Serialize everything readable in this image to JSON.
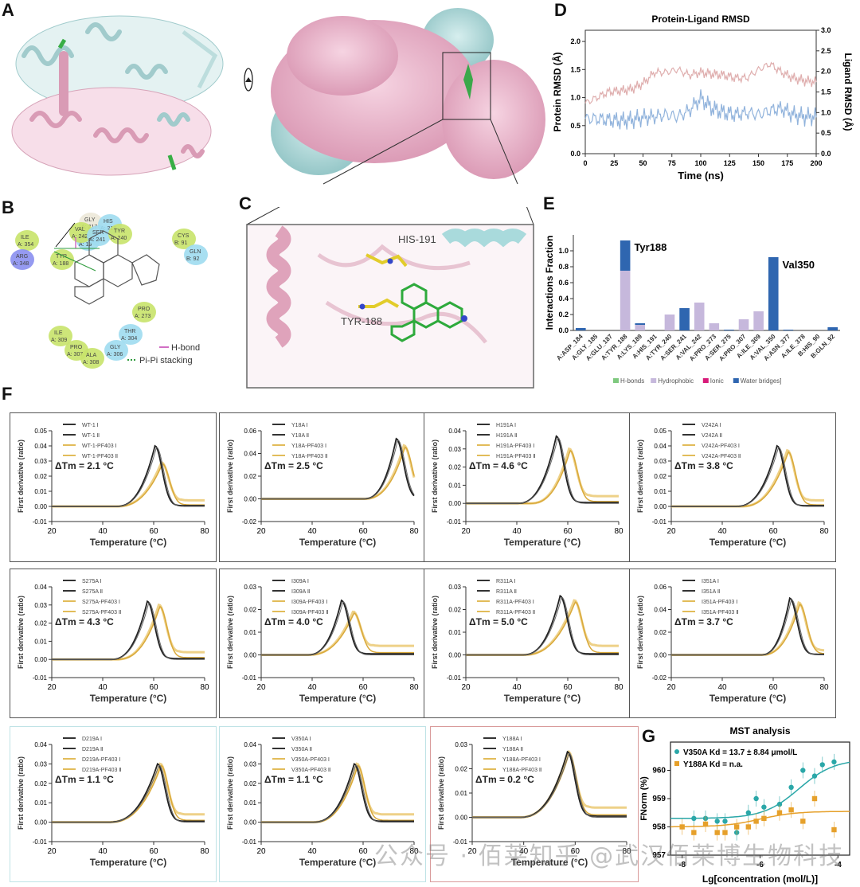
{
  "panels": {
    "A": {
      "label": "A",
      "description": "Protein structure: cartoon (pink/cyan chains with green ligand) and rotated surface view",
      "rotate_icon": "rotate-arrow"
    },
    "B": {
      "label": "B",
      "residues": [
        {
          "name": "GLY",
          "id": "A: 217"
        },
        {
          "name": "HIS",
          "id": "A: 218"
        },
        {
          "name": "HID",
          "id": "A: 19"
        },
        {
          "name": "VAL",
          "id": "A: 242"
        },
        {
          "name": "SER",
          "id": "A: 241"
        },
        {
          "name": "TYR",
          "id": "A: 240"
        },
        {
          "name": "ILE",
          "id": "A: 354"
        },
        {
          "name": "ARG",
          "id": "A: 348"
        },
        {
          "name": "TYR",
          "id": "A: 188"
        },
        {
          "name": "CYS",
          "id": "B: 91"
        },
        {
          "name": "GLN",
          "id": "B: 92"
        },
        {
          "name": "PRO",
          "id": "A: 273"
        },
        {
          "name": "ILE",
          "id": "A: 309"
        },
        {
          "name": "PRO",
          "id": "A: 307"
        },
        {
          "name": "THR",
          "id": "A: 304"
        },
        {
          "name": "GLY",
          "id": "A: 306"
        },
        {
          "name": "ALA",
          "id": "A: 308"
        }
      ],
      "legend": [
        {
          "label": "H-bond",
          "color": "#d16fc4"
        },
        {
          "label": "Pi-Pi stacking",
          "color": "#2e9b3c"
        }
      ]
    },
    "C": {
      "label": "C",
      "annotations": [
        "HIS-191",
        "TYR-188"
      ]
    },
    "D": {
      "label": "D"
    },
    "E": {
      "label": "E"
    },
    "F": {
      "label": "F"
    },
    "G": {
      "label": "G"
    }
  },
  "chart_data": [
    {
      "id": "D",
      "type": "line",
      "title": "Protein-Ligand RMSD",
      "xlabel": "Time (ns)",
      "ylabel": "Protein RMSD (Å)",
      "ylabel_right": "Ligand RMSD (Å)",
      "xlim": [
        0,
        200
      ],
      "ylim": [
        0,
        2.2
      ],
      "ylim_right": [
        0,
        3.0
      ],
      "xticks": [
        "0",
        "25",
        "50",
        "75",
        "100",
        "125",
        "150",
        "175",
        "200"
      ],
      "yticks": [
        "0.0",
        "0.5",
        "1.0",
        "1.5",
        "2.0"
      ],
      "yticks_right": [
        "0.0",
        "0.5",
        "1.0",
        "1.5",
        "2.0",
        "2.5",
        "3.0"
      ],
      "series": [
        {
          "name": "Protein RMSD",
          "color": "#d9a0a0",
          "axis": "left",
          "x": [
            0,
            10,
            20,
            30,
            40,
            50,
            60,
            70,
            80,
            90,
            100,
            110,
            120,
            130,
            140,
            150,
            160,
            170,
            180,
            190,
            200
          ],
          "values": [
            0.9,
            1.0,
            1.1,
            1.12,
            1.15,
            1.25,
            1.45,
            1.45,
            1.5,
            1.4,
            1.45,
            1.42,
            1.4,
            1.35,
            1.35,
            1.5,
            1.6,
            1.45,
            1.35,
            1.3,
            1.28
          ]
        },
        {
          "name": "Ligand RMSD",
          "color": "#7ea6d6",
          "axis": "right",
          "x": [
            0,
            10,
            20,
            30,
            40,
            50,
            60,
            70,
            80,
            90,
            100,
            110,
            120,
            130,
            140,
            150,
            160,
            170,
            180,
            190,
            200
          ],
          "values": [
            0.85,
            0.85,
            0.82,
            0.8,
            0.82,
            0.88,
            0.9,
            0.95,
            0.9,
            1.05,
            1.35,
            1.1,
            1.0,
            0.95,
            1.0,
            0.95,
            1.05,
            1.1,
            0.95,
            0.9,
            0.9
          ]
        }
      ]
    },
    {
      "id": "E",
      "type": "bar",
      "stacked": true,
      "xlabel": "",
      "ylabel": "Interactions Fraction",
      "ylim": [
        0,
        1.2
      ],
      "yticks": [
        "0.0",
        "0.2",
        "0.4",
        "0.6",
        "0.8",
        "1.0"
      ],
      "categories": [
        "A:ASP_184",
        "A:GLY_185",
        "A:GLU_187",
        "A:TYR_188",
        "A:LYS_189",
        "A:HIS_191",
        "A:TYR_240",
        "A:SER_241",
        "A:VAL_242",
        "A:PRO_273",
        "A:SER_275",
        "A:PRO_307",
        "A:ILE_309",
        "A:VAL_350",
        "A:ASN_377",
        "A:ILE_378",
        "B:HIS_90",
        "B:GLN_92"
      ],
      "series": [
        {
          "name": "H-bonds",
          "color": "#7fc97f",
          "values": [
            0,
            0,
            0,
            0,
            0,
            0,
            0,
            0,
            0,
            0,
            0,
            0,
            0,
            0,
            0,
            0,
            0,
            0
          ]
        },
        {
          "name": "Hydrophobic",
          "color": "#c6b8dc",
          "values": [
            0,
            0,
            0,
            0.75,
            0.07,
            0,
            0.2,
            0,
            0.35,
            0.09,
            0,
            0.14,
            0.24,
            0,
            0,
            0,
            0,
            0
          ]
        },
        {
          "name": "Ionic",
          "color": "#d81b7a",
          "values": [
            0,
            0,
            0,
            0,
            0,
            0,
            0,
            0,
            0,
            0,
            0,
            0,
            0,
            0,
            0,
            0,
            0,
            0
          ]
        },
        {
          "name": "Water bridges",
          "color": "#2f66b0",
          "values": [
            0.03,
            0,
            0,
            0.38,
            0.02,
            0,
            0,
            0.28,
            0,
            0,
            0.01,
            0,
            0,
            0.92,
            0.01,
            0,
            0,
            0.04
          ]
        }
      ],
      "annotations": [
        "Tyr188",
        "Val350"
      ],
      "legend": [
        "H-bonds",
        "Hydrophobic",
        "Ionic",
        "Water bridges]"
      ]
    },
    {
      "id": "F",
      "type": "line",
      "xlabel": "Temperature (°C)",
      "ylabel": "First derivative (ratio)",
      "xlim": [
        20,
        80
      ],
      "xticks": [
        "20",
        "40",
        "60",
        "80"
      ],
      "subplots": [
        {
          "name": "WT-1",
          "frame": "dark",
          "legend": [
            "WT-1 Ⅰ",
            "WT-1 Ⅱ",
            "WT-1-PF403 Ⅰ",
            "WT-1-PF403 Ⅱ"
          ],
          "dtm": "ΔTm = 2.1 °C",
          "ylim": [
            -0.01,
            0.05
          ],
          "yticks": [
            "-0.01",
            "0.00",
            "0.01",
            "0.02",
            "0.03",
            "0.04",
            "0.05"
          ],
          "apo_peak": {
            "x": 60.5,
            "y": 0.04,
            "onset": 45
          },
          "holo_peak": {
            "x": 63,
            "y": 0.029,
            "onset": 45
          }
        },
        {
          "name": "Y18A",
          "frame": "dark",
          "legend": [
            "Y18A Ⅰ",
            "Y18A Ⅱ",
            "Y18A-PF403 Ⅰ",
            "Y18A-PF403 Ⅱ"
          ],
          "dtm": "ΔTm = 2.5 °C",
          "ylim": [
            -0.02,
            0.06
          ],
          "yticks": [
            "-0.02",
            "0.00",
            "0.02",
            "0.04",
            "0.06"
          ],
          "apo_peak": {
            "x": 73,
            "y": 0.053,
            "onset": 60
          },
          "holo_peak": {
            "x": 76,
            "y": 0.047,
            "onset": 60
          }
        },
        {
          "name": "H191A",
          "frame": "dark",
          "legend": [
            "H191A Ⅰ",
            "H191A Ⅱ",
            "H191A-PF403 Ⅰ",
            "H191A-PF403 Ⅱ"
          ],
          "dtm": "ΔTm = 4.6 °C",
          "ylim": [
            -0.01,
            0.04
          ],
          "yticks": [
            "-0.01",
            "0.00",
            "0.01",
            "0.02",
            "0.03",
            "0.04"
          ],
          "apo_peak": {
            "x": 55.5,
            "y": 0.037,
            "onset": 40
          },
          "holo_peak": {
            "x": 60.5,
            "y": 0.03,
            "onset": 45
          }
        },
        {
          "name": "V242A",
          "frame": "dark",
          "legend": [
            "V242A Ⅰ",
            "V242A Ⅱ",
            "V242A-PF403 Ⅰ",
            "V242A-PF403 Ⅱ"
          ],
          "dtm": "ΔTm = 3.8 °C",
          "ylim": [
            -0.01,
            0.05
          ],
          "yticks": [
            "-0.01",
            "0.00",
            "0.01",
            "0.02",
            "0.03",
            "0.04",
            "0.05"
          ],
          "apo_peak": {
            "x": 61.5,
            "y": 0.04,
            "onset": 45
          },
          "holo_peak": {
            "x": 65.5,
            "y": 0.037,
            "onset": 47
          }
        },
        {
          "name": "S275A",
          "frame": "dark",
          "legend": [
            "S275A Ⅰ",
            "S275A Ⅱ",
            "S275A-PF403 Ⅰ",
            "S275A-PF403 Ⅱ"
          ],
          "dtm": "ΔTm = 4.3 °C",
          "ylim": [
            -0.01,
            0.04
          ],
          "yticks": [
            "-0.01",
            "0.00",
            "0.01",
            "0.02",
            "0.03",
            "0.04"
          ],
          "apo_peak": {
            "x": 57.5,
            "y": 0.032,
            "onset": 43
          },
          "holo_peak": {
            "x": 62,
            "y": 0.03,
            "onset": 45
          }
        },
        {
          "name": "I309A",
          "frame": "dark",
          "legend": [
            "I309A Ⅰ",
            "I309A Ⅱ",
            "I309A-PF403 Ⅰ",
            "I309A-PF403 Ⅱ"
          ],
          "dtm": "ΔTm = 4.0 °C",
          "ylim": [
            -0.01,
            0.03
          ],
          "yticks": [
            "-0.01",
            "0.00",
            "0.01",
            "0.02",
            "0.03"
          ],
          "apo_peak": {
            "x": 51.5,
            "y": 0.024,
            "onset": 38
          },
          "holo_peak": {
            "x": 56,
            "y": 0.019,
            "onset": 38
          }
        },
        {
          "name": "R311A",
          "frame": "dark",
          "legend": [
            "R311A Ⅰ",
            "R311A Ⅱ",
            "R311A-PF403 Ⅰ",
            "R311A-PF403 Ⅱ"
          ],
          "dtm": "ΔTm = 5.0 °C",
          "ylim": [
            -0.01,
            0.03
          ],
          "yticks": [
            "-0.01",
            "0.00",
            "0.01",
            "0.02",
            "0.03"
          ],
          "apo_peak": {
            "x": 57,
            "y": 0.026,
            "onset": 42
          },
          "holo_peak": {
            "x": 62.5,
            "y": 0.024,
            "onset": 42
          }
        },
        {
          "name": "I351A",
          "frame": "dark",
          "legend": [
            "I351A Ⅰ",
            "I351A Ⅱ",
            "I351A-PF403 Ⅰ",
            "I351A-PF403 Ⅱ"
          ],
          "dtm": "ΔTm = 3.7 °C",
          "ylim": [
            -0.02,
            0.06
          ],
          "yticks": [
            "-0.02",
            "0.00",
            "0.02",
            "0.04",
            "0.06"
          ],
          "apo_peak": {
            "x": 66.5,
            "y": 0.05,
            "onset": 55
          },
          "holo_peak": {
            "x": 70,
            "y": 0.046,
            "onset": 55
          }
        },
        {
          "name": "D219A",
          "frame": "cyan",
          "legend": [
            "D219A Ⅰ",
            "D219A Ⅱ",
            "D219A-PF403 Ⅰ",
            "D219A-PF403 Ⅱ"
          ],
          "dtm": "ΔTm = 1.1 °C",
          "ylim": [
            -0.01,
            0.04
          ],
          "yticks": [
            "-0.01",
            "0.00",
            "0.01",
            "0.02",
            "0.03",
            "0.04"
          ],
          "apo_peak": {
            "x": 61.5,
            "y": 0.03,
            "onset": 42
          },
          "holo_peak": {
            "x": 62.5,
            "y": 0.03,
            "onset": 42
          }
        },
        {
          "name": "V350A",
          "frame": "cyan",
          "legend": [
            "V350A Ⅰ",
            "V350A Ⅱ",
            "V350A-PF403 Ⅰ",
            "V350A-PF403 Ⅱ"
          ],
          "dtm": "ΔTm = 1.1 °C",
          "ylim": [
            -0.01,
            0.04
          ],
          "yticks": [
            "-0.01",
            "0.00",
            "0.01",
            "0.02",
            "0.03",
            "0.04"
          ],
          "apo_peak": {
            "x": 56.5,
            "y": 0.03,
            "onset": 40
          },
          "holo_peak": {
            "x": 57.5,
            "y": 0.03,
            "onset": 40
          }
        },
        {
          "name": "Y188A",
          "frame": "red",
          "legend": [
            "Y188A Ⅰ",
            "Y188A Ⅱ",
            "Y188A-PF403 Ⅰ",
            "Y188A-PF403 Ⅱ"
          ],
          "dtm": "ΔTm = 0.2 °C",
          "ylim": [
            -0.01,
            0.03
          ],
          "yticks": [
            "-0.01",
            "0.00",
            "0.01",
            "0.02",
            "0.03"
          ],
          "apo_peak": {
            "x": 57,
            "y": 0.027,
            "onset": 38
          },
          "holo_peak": {
            "x": 57.2,
            "y": 0.027,
            "onset": 38
          }
        }
      ]
    },
    {
      "id": "G",
      "type": "scatter",
      "title": "MST analysis",
      "xlabel": "Lg[concentration (mol/L)]",
      "ylabel": "FNorm (%)",
      "xlim": [
        -8.3,
        -3.7
      ],
      "ylim": [
        957,
        961
      ],
      "xticks": [
        "-8",
        "-6",
        "-4"
      ],
      "yticks": [
        "957",
        "958",
        "959",
        "960"
      ],
      "series": [
        {
          "name": "V350A",
          "legend": "V350A Kd = 13.7 ± 8.84 μmol/L",
          "color": "#2aa7a8",
          "x": [
            -7.7,
            -7.4,
            -7.1,
            -6.9,
            -6.6,
            -6.3,
            -6.1,
            -5.9,
            -5.5,
            -5.2,
            -4.9,
            -4.6,
            -4.4,
            -4.1
          ],
          "y": [
            958.3,
            958.3,
            958.2,
            958.2,
            957.8,
            958.5,
            959.0,
            958.7,
            958.8,
            959.4,
            960.0,
            959.8,
            960.2,
            960.3
          ]
        },
        {
          "name": "Y188A",
          "legend": "Y188A Kd = n.a.",
          "color": "#e6a02a",
          "x": [
            -8.0,
            -7.7,
            -7.4,
            -7.1,
            -6.9,
            -6.6,
            -6.3,
            -6.1,
            -5.9,
            -5.5,
            -5.2,
            -4.9,
            -4.6,
            -4.1
          ],
          "y": [
            958.0,
            957.8,
            958.1,
            957.8,
            957.8,
            958.0,
            958.0,
            958.2,
            958.3,
            958.5,
            958.6,
            958.2,
            959.0,
            957.9
          ]
        }
      ]
    }
  ],
  "watermark": "公众号 · 佰莱知乎 @武汉佰莱博生物科技"
}
